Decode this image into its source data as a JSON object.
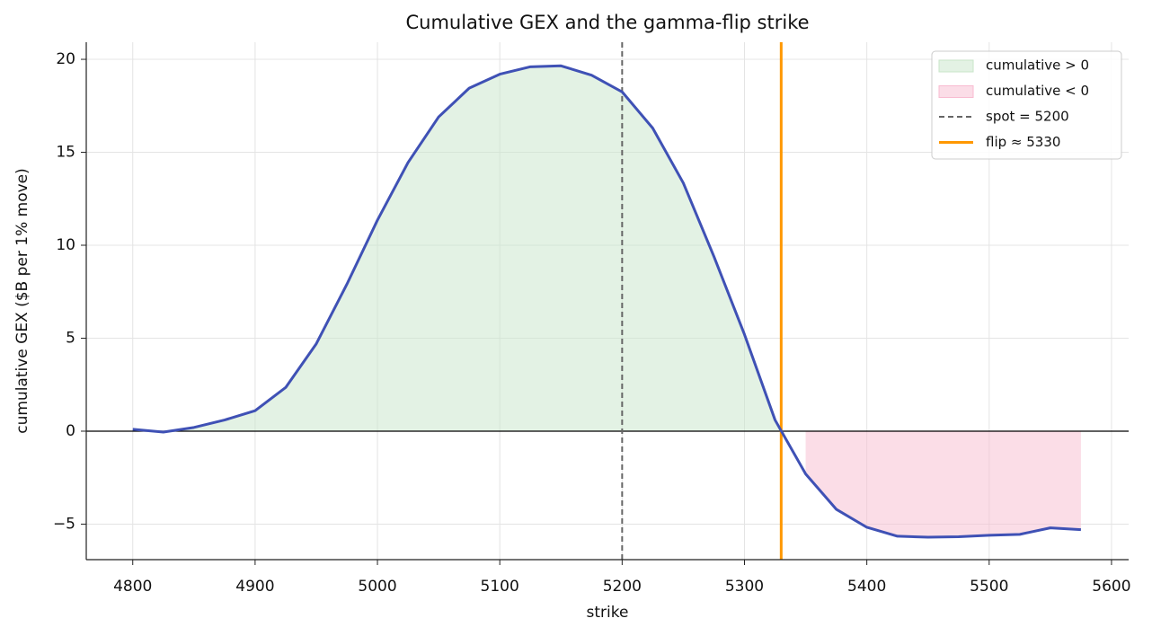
{
  "chart_data": {
    "type": "line",
    "title": "Cumulative GEX and the gamma-flip strike",
    "xlabel": "strike",
    "ylabel": "cumulative GEX ($B per 1% move)",
    "x": [
      4800,
      4825,
      4850,
      4875,
      4900,
      4925,
      4950,
      4975,
      5000,
      5025,
      5050,
      5075,
      5100,
      5125,
      5150,
      5175,
      5200,
      5225,
      5250,
      5275,
      5300,
      5325,
      5350,
      5375,
      5400,
      5425,
      5450,
      5475,
      5500,
      5525,
      5550,
      5575
    ],
    "series": [
      {
        "color": "#3f51b5",
        "values": [
          0.1,
          -0.05,
          0.2,
          0.6,
          1.1,
          2.35,
          4.7,
          7.9,
          11.35,
          14.45,
          16.9,
          18.45,
          19.2,
          19.6,
          19.65,
          19.15,
          18.25,
          16.3,
          13.35,
          9.4,
          5.2,
          0.6,
          -2.3,
          -4.2,
          -5.17,
          -5.65,
          -5.7,
          -5.68,
          -5.6,
          -5.55,
          -5.2,
          -5.3
        ]
      }
    ],
    "fills": [
      {
        "label": "cumulative > 0",
        "color": "#c8e6c9",
        "opacity": 0.5,
        "where": "positive",
        "interpolate": true
      },
      {
        "label": "cumulative < 0",
        "color": "#f8bbd0",
        "opacity": 0.5,
        "where": "negative",
        "interpolate": false
      }
    ],
    "vlines": [
      {
        "label": "spot = 5200",
        "value": 5200,
        "color": "#666666",
        "dashed": true
      },
      {
        "label": "flip ≈ 5330",
        "value": 5330,
        "color": "#ff9800",
        "dashed": false
      }
    ],
    "xlim": [
      4762,
      5614
    ],
    "ylim": [
      -6.91,
      20.92
    ],
    "xticks": [
      4800,
      4900,
      5000,
      5100,
      5200,
      5300,
      5400,
      5500,
      5600
    ],
    "yticks": [
      {
        "value": -5,
        "label": "−5"
      },
      0,
      5,
      10,
      15,
      20
    ],
    "grid": true,
    "legend": "upper right"
  }
}
